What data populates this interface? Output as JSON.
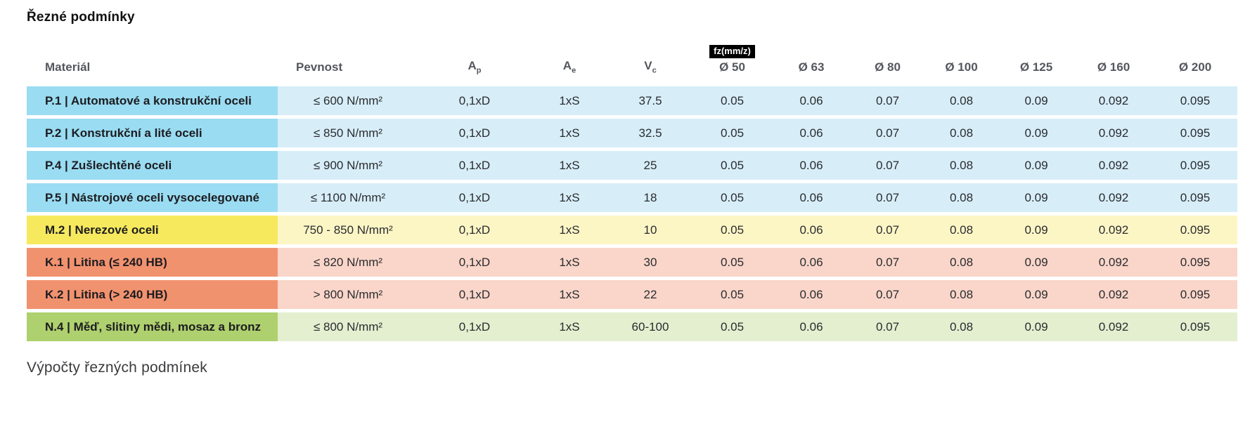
{
  "page": {
    "title": "Řezné podmínky",
    "footer_heading": "Výpočty řezných podmínek"
  },
  "table": {
    "fz_badge": "fz(mm/z)",
    "headers": {
      "material": "Materiál",
      "pevnost": "Pevnost",
      "ap_base": "A",
      "ap_sub": "p",
      "ae_base": "A",
      "ae_sub": "e",
      "vc_base": "V",
      "vc_sub": "c",
      "d50": "Ø 50",
      "d63": "Ø 63",
      "d80": "Ø 80",
      "d100": "Ø 100",
      "d125": "Ø 125",
      "d160": "Ø 160",
      "d200": "Ø 200"
    },
    "colors": {
      "blue": {
        "label": "#9adcf2",
        "cells": "#d7eef8"
      },
      "yellow": {
        "label": "#f6e95e",
        "cells": "#fcf6c5"
      },
      "salmon": {
        "label": "#f1926f",
        "cells": "#f9d6c9"
      },
      "green": {
        "label": "#aed06e",
        "cells": "#e3efcf"
      }
    },
    "rows": [
      {
        "group": "blue",
        "material": "P.1 | Automatové a konstrukční oceli",
        "pevnost": "≤ 600 N/mm²",
        "ap": "0,1xD",
        "ae": "1xS",
        "vc": "37.5",
        "fz": [
          "0.05",
          "0.06",
          "0.07",
          "0.08",
          "0.09",
          "0.092",
          "0.095"
        ]
      },
      {
        "group": "blue",
        "material": "P.2 | Konstrukční a lité oceli",
        "pevnost": "≤ 850 N/mm²",
        "ap": "0,1xD",
        "ae": "1xS",
        "vc": "32.5",
        "fz": [
          "0.05",
          "0.06",
          "0.07",
          "0.08",
          "0.09",
          "0.092",
          "0.095"
        ]
      },
      {
        "group": "blue",
        "material": "P.4 | Zušlechtěné oceli",
        "pevnost": "≤ 900 N/mm²",
        "ap": "0,1xD",
        "ae": "1xS",
        "vc": "25",
        "fz": [
          "0.05",
          "0.06",
          "0.07",
          "0.08",
          "0.09",
          "0.092",
          "0.095"
        ]
      },
      {
        "group": "blue",
        "material": "P.5 | Nástrojové oceli vysocelegované",
        "pevnost": "≤ 1100 N/mm²",
        "ap": "0,1xD",
        "ae": "1xS",
        "vc": "18",
        "fz": [
          "0.05",
          "0.06",
          "0.07",
          "0.08",
          "0.09",
          "0.092",
          "0.095"
        ]
      },
      {
        "group": "yellow",
        "material": "M.2 | Nerezové oceli",
        "pevnost": "750 - 850 N/mm²",
        "ap": "0,1xD",
        "ae": "1xS",
        "vc": "10",
        "fz": [
          "0.05",
          "0.06",
          "0.07",
          "0.08",
          "0.09",
          "0.092",
          "0.095"
        ]
      },
      {
        "group": "salmon",
        "material": "K.1 | Litina (≤ 240 HB)",
        "pevnost": "≤ 820 N/mm²",
        "ap": "0,1xD",
        "ae": "1xS",
        "vc": "30",
        "fz": [
          "0.05",
          "0.06",
          "0.07",
          "0.08",
          "0.09",
          "0.092",
          "0.095"
        ]
      },
      {
        "group": "salmon",
        "material": "K.2 | Litina (> 240 HB)",
        "pevnost": "> 800 N/mm²",
        "ap": "0,1xD",
        "ae": "1xS",
        "vc": "22",
        "fz": [
          "0.05",
          "0.06",
          "0.07",
          "0.08",
          "0.09",
          "0.092",
          "0.095"
        ]
      },
      {
        "group": "green",
        "material": "N.4 | Měď, slitiny mědi, mosaz a bronz",
        "pevnost": "≤ 800 N/mm²",
        "ap": "0,1xD",
        "ae": "1xS",
        "vc": "60-100",
        "fz": [
          "0.05",
          "0.06",
          "0.07",
          "0.08",
          "0.09",
          "0.092",
          "0.095"
        ]
      }
    ]
  }
}
